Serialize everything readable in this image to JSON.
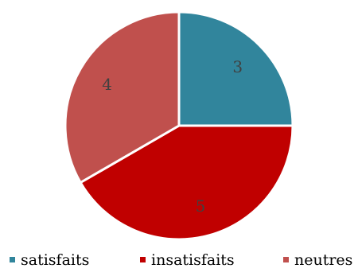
{
  "chart_data": {
    "type": "pie",
    "title": "",
    "slices": [
      {
        "label": "satisfaits",
        "value": 3,
        "color": "#31859c"
      },
      {
        "label": "insatisfaits",
        "value": 5,
        "color": "#c00000"
      },
      {
        "label": "neutres",
        "value": 4,
        "color": "#c0504d"
      }
    ],
    "data_labels": [
      "3",
      "5",
      "4"
    ],
    "legend_position": "bottom"
  }
}
